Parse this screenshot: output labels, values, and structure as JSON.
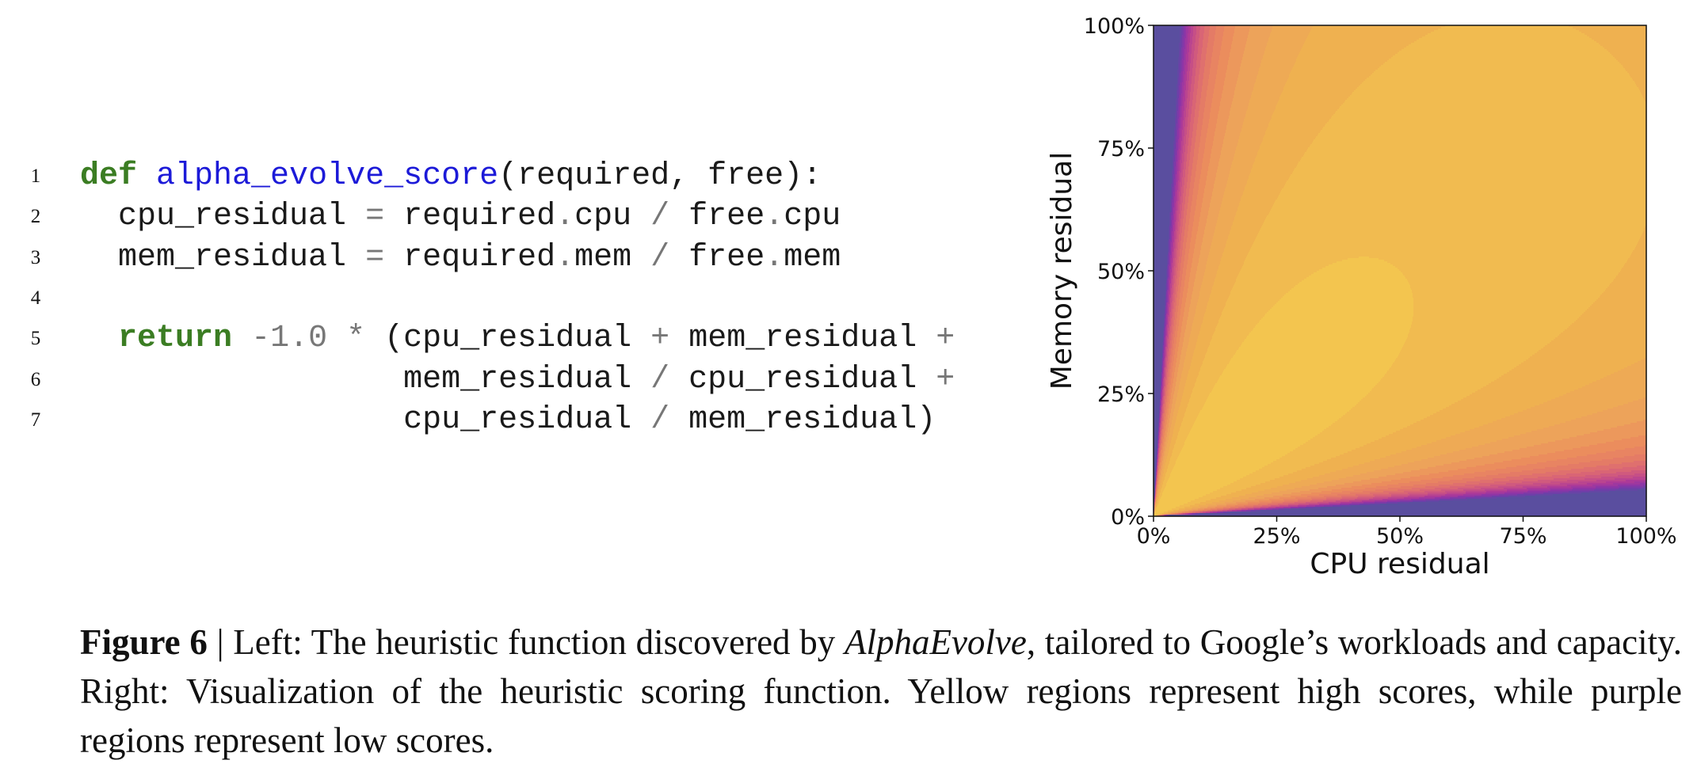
{
  "code": {
    "lines": [
      {
        "number": "1",
        "tokens": [
          {
            "text": "def",
            "style": "keyword"
          },
          {
            "text": " ",
            "style": "plain"
          },
          {
            "text": "alpha_evolve_score",
            "style": "function"
          },
          {
            "text": "(required, free):",
            "style": "plain"
          }
        ]
      },
      {
        "number": "2",
        "tokens": [
          {
            "text": "  cpu_residual ",
            "style": "plain"
          },
          {
            "text": "=",
            "style": "operator"
          },
          {
            "text": " required",
            "style": "plain"
          },
          {
            "text": ".",
            "style": "operator"
          },
          {
            "text": "cpu ",
            "style": "plain"
          },
          {
            "text": "/",
            "style": "operator"
          },
          {
            "text": " free",
            "style": "plain"
          },
          {
            "text": ".",
            "style": "operator"
          },
          {
            "text": "cpu",
            "style": "plain"
          }
        ]
      },
      {
        "number": "3",
        "tokens": [
          {
            "text": "  mem_residual ",
            "style": "plain"
          },
          {
            "text": "=",
            "style": "operator"
          },
          {
            "text": " required",
            "style": "plain"
          },
          {
            "text": ".",
            "style": "operator"
          },
          {
            "text": "mem ",
            "style": "plain"
          },
          {
            "text": "/",
            "style": "operator"
          },
          {
            "text": " free",
            "style": "plain"
          },
          {
            "text": ".",
            "style": "operator"
          },
          {
            "text": "mem",
            "style": "plain"
          }
        ]
      },
      {
        "number": "4",
        "tokens": []
      },
      {
        "number": "5",
        "tokens": [
          {
            "text": "  ",
            "style": "plain"
          },
          {
            "text": "return",
            "style": "keyword"
          },
          {
            "text": " ",
            "style": "plain"
          },
          {
            "text": "-1.0",
            "style": "operator"
          },
          {
            "text": " ",
            "style": "plain"
          },
          {
            "text": "*",
            "style": "operator"
          },
          {
            "text": " (cpu_residual ",
            "style": "plain"
          },
          {
            "text": "+",
            "style": "operator"
          },
          {
            "text": " mem_residual ",
            "style": "plain"
          },
          {
            "text": "+",
            "style": "operator"
          }
        ]
      },
      {
        "number": "6",
        "tokens": [
          {
            "text": "                 mem_residual ",
            "style": "plain"
          },
          {
            "text": "/",
            "style": "operator"
          },
          {
            "text": " cpu_residual ",
            "style": "plain"
          },
          {
            "text": "+",
            "style": "operator"
          }
        ]
      },
      {
        "number": "7",
        "tokens": [
          {
            "text": "                 cpu_residual ",
            "style": "plain"
          },
          {
            "text": "/",
            "style": "operator"
          },
          {
            "text": " mem_residual)",
            "style": "plain"
          }
        ]
      }
    ]
  },
  "chart_data": {
    "type": "contour",
    "xlabel": "CPU residual",
    "ylabel": "Memory residual",
    "xlim": [
      0,
      100
    ],
    "ylim": [
      0,
      100
    ],
    "xticks": [
      {
        "value": 0,
        "label": "0%"
      },
      {
        "value": 25,
        "label": "25%"
      },
      {
        "value": 50,
        "label": "50%"
      },
      {
        "value": 75,
        "label": "75%"
      },
      {
        "value": 100,
        "label": "100%"
      }
    ],
    "yticks": [
      {
        "value": 0,
        "label": "0%"
      },
      {
        "value": 25,
        "label": "25%"
      },
      {
        "value": 50,
        "label": "50%"
      },
      {
        "value": 75,
        "label": "75%"
      },
      {
        "value": 100,
        "label": "100%"
      }
    ],
    "colormap": [
      "#5a4e9f",
      "#6e3fa8",
      "#8e35a6",
      "#ad3a98",
      "#c64f86",
      "#d96575",
      "#e47b66",
      "#eb8d5d",
      "#eda35a",
      "#efb150",
      "#f3c54f"
    ]
  },
  "caption": {
    "label": "Figure 6",
    "text_before": " | Left: The heuristic function discovered by ",
    "emphasis": "AlphaEvolve",
    "text_after": ", tailored to Google’s workloads and capacity. Right: Visualization of the heuristic scoring function. Yellow regions represent high scores, while purple regions represent low scores."
  }
}
